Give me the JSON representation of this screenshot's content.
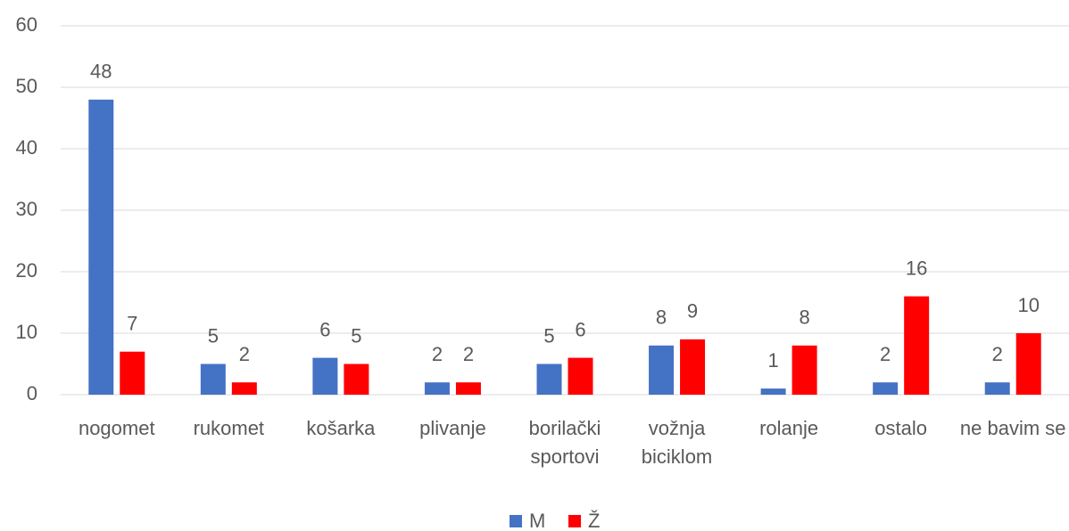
{
  "chart_data": {
    "type": "bar",
    "categories": [
      "nogomet",
      "rukomet",
      "košarka",
      "plivanje",
      "borilački sportovi",
      "vožnja biciklom",
      "rolanje",
      "ostalo",
      "ne bavim se"
    ],
    "series": [
      {
        "name": "M",
        "color": "#4472c4",
        "values": [
          48,
          5,
          6,
          2,
          5,
          8,
          1,
          2,
          2
        ]
      },
      {
        "name": "Ž",
        "color": "#ff0000",
        "values": [
          7,
          2,
          5,
          2,
          6,
          9,
          8,
          16,
          10
        ]
      }
    ],
    "ylim": [
      0,
      60
    ],
    "yticks": [
      0,
      10,
      20,
      30,
      40,
      50,
      60
    ],
    "grid": true,
    "legend": "bottom"
  }
}
